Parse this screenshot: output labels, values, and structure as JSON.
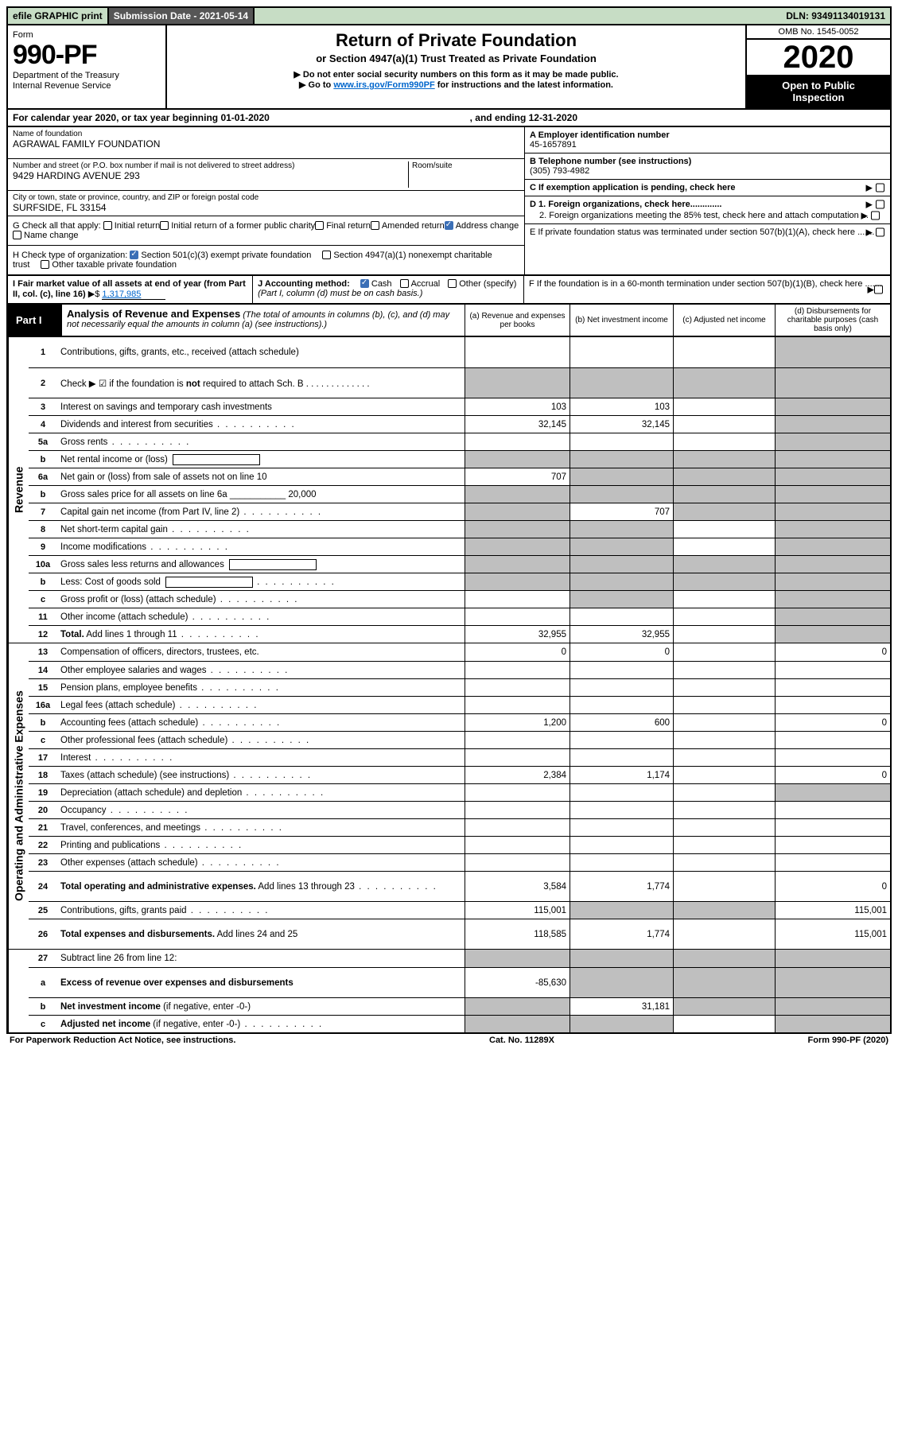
{
  "meta": {
    "efile": "efile GRAPHIC print",
    "submission": "Submission Date - 2021-05-14",
    "dln": "DLN: 93491134019131",
    "omb": "OMB No. 1545-0052",
    "year": "2020",
    "open1": "Open to Public",
    "open2": "Inspection",
    "form_label": "Form",
    "form_number": "990-PF",
    "dept1": "Department of the Treasury",
    "dept2": "Internal Revenue Service",
    "title": "Return of Private Foundation",
    "subtitle": "or Section 4947(a)(1) Trust Treated as Private Foundation",
    "note1": "▶ Do not enter social security numbers on this form as it may be made public.",
    "note2_a": "▶ Go to ",
    "note2_link": "www.irs.gov/Form990PF",
    "note2_b": " for instructions and the latest information.",
    "cal_left": "For calendar year 2020, or tax year beginning 01-01-2020",
    "cal_right": ", and ending 12-31-2020"
  },
  "entity": {
    "name_label": "Name of foundation",
    "name": "AGRAWAL FAMILY FOUNDATION",
    "addr_label": "Number and street (or P.O. box number if mail is not delivered to street address)",
    "addr": "9429 HARDING AVENUE 293",
    "room_label": "Room/suite",
    "city_label": "City or town, state or province, country, and ZIP or foreign postal code",
    "city": "SURFSIDE, FL  33154",
    "A_label": "A Employer identification number",
    "A_value": "45-1657891",
    "B_label": "B Telephone number (see instructions)",
    "B_value": "(305) 793-4982",
    "C_label": "C If exemption application is pending, check here",
    "D1": "D 1. Foreign organizations, check here.............",
    "D2": "2. Foreign organizations meeting the 85% test, check here and attach computation ...",
    "E": "E  If private foundation status was terminated under section 507(b)(1)(A), check here .......",
    "F": "F  If the foundation is in a 60-month termination under section 507(b)(1)(B), check here .......",
    "G_label": "G Check all that apply:",
    "G_opts": [
      "Initial return",
      "Initial return of a former public charity",
      "Final return",
      "Amended return",
      "Address change",
      "Name change"
    ],
    "G_checked_index": 4,
    "H_label": "H Check type of organization:",
    "H_opts": [
      "Section 501(c)(3) exempt private foundation",
      "Section 4947(a)(1) nonexempt charitable trust",
      "Other taxable private foundation"
    ],
    "H_checked_index": 0,
    "I_label": "I Fair market value of all assets at end of year (from Part II, col. (c), line 16)",
    "I_value": "1,317,985",
    "J_label": "J Accounting method:",
    "J_opts": [
      "Cash",
      "Accrual",
      "Other (specify)"
    ],
    "J_note": "(Part I, column (d) must be on cash basis.)",
    "J_checked_index": 0
  },
  "partI": {
    "label": "Part I",
    "title": "Analysis of Revenue and Expenses",
    "titlenote": " (The total of amounts in columns (b), (c), and (d) may not necessarily equal the amounts in column (a) (see instructions).)",
    "cols": {
      "a": "(a) Revenue and expenses per books",
      "b": "(b) Net investment income",
      "c": "(c) Adjusted net income",
      "d": "(d) Disbursements for charitable purposes (cash basis only)"
    }
  },
  "sections": [
    {
      "side": "Revenue",
      "rows": [
        {
          "n": "1",
          "lbl": "Contributions, gifts, grants, etc., received (attach schedule)",
          "tall": true,
          "a": "",
          "b": "",
          "c": "",
          "d": "grey"
        },
        {
          "n": "2",
          "lbl": "Check ▶ ☑ if the foundation is <b>not</b> required to attach Sch. B",
          "tall": true,
          "noabcd": true,
          "dotsafter": true
        },
        {
          "n": "3",
          "lbl": "Interest on savings and temporary cash investments",
          "a": "103",
          "b": "103",
          "c": "",
          "d": "grey"
        },
        {
          "n": "4",
          "lbl": "Dividends and interest from securities",
          "a": "32,145",
          "b": "32,145",
          "c": "",
          "d": "grey",
          "dots": true
        },
        {
          "n": "5a",
          "lbl": "Gross rents",
          "a": "",
          "b": "",
          "c": "",
          "d": "grey",
          "dots": true
        },
        {
          "n": "b",
          "lbl": "Net rental income or (loss)",
          "mini": true,
          "noabcd": true
        },
        {
          "n": "6a",
          "lbl": "Net gain or (loss) from sale of assets not on line 10",
          "a": "707",
          "b": "grey",
          "c": "grey",
          "d": "grey"
        },
        {
          "n": "b",
          "lbl": "Gross sales price for all assets on line 6a ___________ 20,000",
          "noabcd": true
        },
        {
          "n": "7",
          "lbl": "Capital gain net income (from Part IV, line 2)",
          "a": "grey",
          "b": "707",
          "c": "grey",
          "d": "grey",
          "dots": true
        },
        {
          "n": "8",
          "lbl": "Net short-term capital gain",
          "a": "grey",
          "b": "grey",
          "c": "",
          "d": "grey",
          "dots": true
        },
        {
          "n": "9",
          "lbl": "Income modifications",
          "a": "grey",
          "b": "grey",
          "c": "",
          "d": "grey",
          "dots": true
        },
        {
          "n": "10a",
          "lbl": "Gross sales less returns and allowances",
          "mini": true,
          "noabcd": true
        },
        {
          "n": "b",
          "lbl": "Less: Cost of goods sold",
          "mini": true,
          "a": "grey",
          "b": "grey",
          "c": "grey",
          "d": "grey",
          "dots": true
        },
        {
          "n": "c",
          "lbl": "Gross profit or (loss) (attach schedule)",
          "a": "",
          "b": "grey",
          "c": "",
          "d": "grey",
          "dots": true
        },
        {
          "n": "11",
          "lbl": "Other income (attach schedule)",
          "a": "",
          "b": "",
          "c": "",
          "d": "grey",
          "dots": true
        },
        {
          "n": "12",
          "lbl": "<b>Total.</b> Add lines 1 through 11",
          "a": "32,955",
          "b": "32,955",
          "c": "",
          "d": "grey",
          "dots": true
        }
      ]
    },
    {
      "side": "Operating and Administrative Expenses",
      "rows": [
        {
          "n": "13",
          "lbl": "Compensation of officers, directors, trustees, etc.",
          "a": "0",
          "b": "0",
          "c": "",
          "d": "0"
        },
        {
          "n": "14",
          "lbl": "Other employee salaries and wages",
          "a": "",
          "b": "",
          "c": "",
          "d": "",
          "dots": true
        },
        {
          "n": "15",
          "lbl": "Pension plans, employee benefits",
          "a": "",
          "b": "",
          "c": "",
          "d": "",
          "dots": true
        },
        {
          "n": "16a",
          "lbl": "Legal fees (attach schedule)",
          "a": "",
          "b": "",
          "c": "",
          "d": "",
          "dots": true
        },
        {
          "n": "b",
          "lbl": "Accounting fees (attach schedule)",
          "a": "1,200",
          "b": "600",
          "c": "",
          "d": "0",
          "dots": true
        },
        {
          "n": "c",
          "lbl": "Other professional fees (attach schedule)",
          "a": "",
          "b": "",
          "c": "",
          "d": "",
          "dots": true
        },
        {
          "n": "17",
          "lbl": "Interest",
          "a": "",
          "b": "",
          "c": "",
          "d": "",
          "dots": true
        },
        {
          "n": "18",
          "lbl": "Taxes (attach schedule) (see instructions)",
          "a": "2,384",
          "b": "1,174",
          "c": "",
          "d": "0",
          "dots": true
        },
        {
          "n": "19",
          "lbl": "Depreciation (attach schedule) and depletion",
          "a": "",
          "b": "",
          "c": "",
          "d": "grey",
          "dots": true
        },
        {
          "n": "20",
          "lbl": "Occupancy",
          "a": "",
          "b": "",
          "c": "",
          "d": "",
          "dots": true
        },
        {
          "n": "21",
          "lbl": "Travel, conferences, and meetings",
          "a": "",
          "b": "",
          "c": "",
          "d": "",
          "dots": true
        },
        {
          "n": "22",
          "lbl": "Printing and publications",
          "a": "",
          "b": "",
          "c": "",
          "d": "",
          "dots": true
        },
        {
          "n": "23",
          "lbl": "Other expenses (attach schedule)",
          "a": "",
          "b": "",
          "c": "",
          "d": "",
          "dots": true
        },
        {
          "n": "24",
          "lbl": "<b>Total operating and administrative expenses.</b> Add lines 13 through 23",
          "tall": true,
          "a": "3,584",
          "b": "1,774",
          "c": "",
          "d": "0",
          "dots": true
        },
        {
          "n": "25",
          "lbl": "Contributions, gifts, grants paid",
          "a": "115,001",
          "b": "grey",
          "c": "grey",
          "d": "115,001",
          "dots": true
        },
        {
          "n": "26",
          "lbl": "<b>Total expenses and disbursements.</b> Add lines 24 and 25",
          "tall": true,
          "a": "118,585",
          "b": "1,774",
          "c": "",
          "d": "115,001"
        }
      ]
    },
    {
      "side": "",
      "rows": [
        {
          "n": "27",
          "lbl": "Subtract line 26 from line 12:",
          "a": "grey",
          "b": "grey",
          "c": "grey",
          "d": "grey"
        },
        {
          "n": "a",
          "lbl": "<b>Excess of revenue over expenses and disbursements</b>",
          "tall": true,
          "a": "-85,630",
          "b": "grey",
          "c": "grey",
          "d": "grey"
        },
        {
          "n": "b",
          "lbl": "<b>Net investment income</b> (if negative, enter -0-)",
          "a": "grey",
          "b": "31,181",
          "c": "grey",
          "d": "grey"
        },
        {
          "n": "c",
          "lbl": "<b>Adjusted net income</b> (if negative, enter -0-)",
          "a": "grey",
          "b": "grey",
          "c": "",
          "d": "grey",
          "dots": true
        }
      ]
    }
  ],
  "footer": {
    "left": "For Paperwork Reduction Act Notice, see instructions.",
    "mid": "Cat. No. 11289X",
    "right": "Form 990-PF (2020)"
  },
  "colors": {
    "topbar_bg": "#c7ddc5",
    "grey_cell": "#bfbfbf",
    "link": "#0066cc",
    "check_on": "#3b6fb6"
  }
}
